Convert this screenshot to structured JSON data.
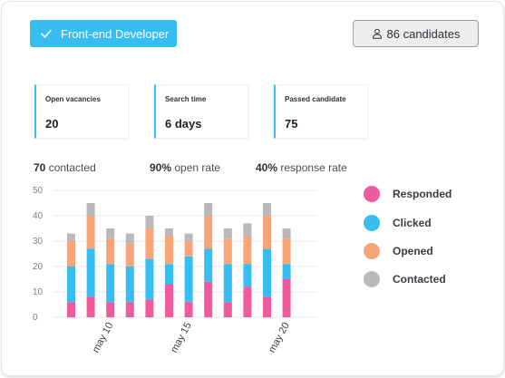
{
  "header": {
    "role_label": "Front-end Developer",
    "candidates_label": "86 candidates"
  },
  "stats": [
    {
      "label": "Open vacancies",
      "value": "20"
    },
    {
      "label": "Search time",
      "value": "6 days"
    },
    {
      "label": "Passed candidate",
      "value": "75"
    }
  ],
  "metrics": [
    {
      "value": "70",
      "text": "contacted"
    },
    {
      "value": "90%",
      "text": "open rate"
    },
    {
      "value": "40%",
      "text": "response rate"
    }
  ],
  "colors": {
    "accent": "#38bdf0",
    "responded": "#ef5b9c",
    "clicked": "#38bdf0",
    "opened": "#f8a57a",
    "contacted": "#b9b9b9"
  },
  "chart_data": {
    "type": "bar",
    "stacked": true,
    "ylim": [
      0,
      50
    ],
    "yticks": [
      0,
      10,
      20,
      30,
      40,
      50
    ],
    "x_tick_labels": [
      "may 10",
      "may 15",
      "may 20"
    ],
    "x_tick_positions": [
      2,
      6,
      11
    ],
    "grid": true,
    "legend_position": "right",
    "series": [
      {
        "name": "Responded",
        "color": "#ef5b9c",
        "values": [
          6,
          8,
          6,
          6,
          7,
          13,
          6,
          14,
          6,
          12,
          8,
          15
        ]
      },
      {
        "name": "Clicked",
        "color": "#38bdf0",
        "values": [
          14,
          19,
          15,
          14,
          16,
          8,
          18,
          13,
          15,
          9,
          19,
          6
        ]
      },
      {
        "name": "Opened",
        "color": "#f8a57a",
        "values": [
          10,
          13,
          10,
          9,
          12,
          11,
          6,
          13,
          10,
          11,
          13,
          10
        ]
      },
      {
        "name": "Contacted",
        "color": "#b9b9b9",
        "values": [
          3,
          5,
          4,
          4,
          5,
          3,
          3,
          5,
          4,
          5,
          5,
          4
        ]
      }
    ]
  }
}
